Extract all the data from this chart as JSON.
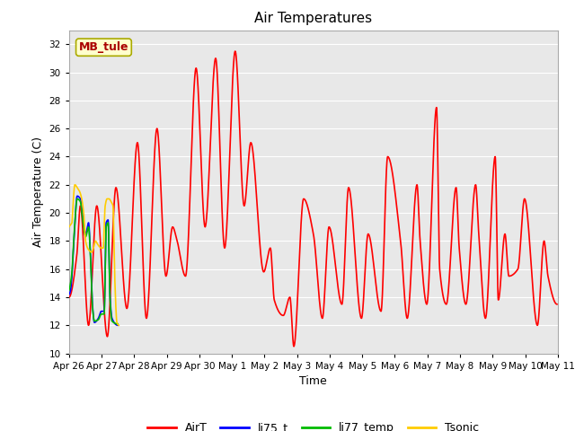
{
  "title": "Air Temperatures",
  "xlabel": "Time",
  "ylabel": "Air Temperature (C)",
  "ylim": [
    10,
    33
  ],
  "yticks": [
    10,
    12,
    14,
    16,
    18,
    20,
    22,
    24,
    26,
    28,
    30,
    32
  ],
  "legend_labels": [
    "AirT",
    "li75_t",
    "li77_temp",
    "Tsonic"
  ],
  "legend_colors": [
    "#ff0000",
    "#0000ff",
    "#00bb00",
    "#ffcc00"
  ],
  "annotation_text": "MB_tule",
  "annotation_color": "#aa0000",
  "annotation_bg": "#ffffcc",
  "annotation_border": "#aaaa00",
  "line_width": 1.2,
  "tick_dates": [
    "Apr 26",
    "Apr 27",
    "Apr 28",
    "Apr 29",
    "Apr 30",
    "May 1",
    "May 2",
    "May 3",
    "May 4",
    "May 5",
    "May 6",
    "May 7",
    "May 8",
    "May 9",
    "May 10",
    "May 11"
  ],
  "airt_keypoints": [
    [
      0.0,
      14.0
    ],
    [
      0.4,
      17.0
    ],
    [
      0.58,
      20.5
    ],
    [
      1.0,
      12.0
    ],
    [
      1.42,
      20.5
    ],
    [
      1.96,
      11.2
    ],
    [
      2.4,
      21.8
    ],
    [
      2.96,
      13.2
    ],
    [
      3.5,
      25.0
    ],
    [
      3.96,
      12.5
    ],
    [
      4.5,
      26.0
    ],
    [
      4.96,
      15.5
    ],
    [
      5.3,
      19.0
    ],
    [
      5.5,
      18.2
    ],
    [
      5.96,
      15.5
    ],
    [
      6.5,
      30.3
    ],
    [
      6.96,
      19.0
    ],
    [
      7.5,
      31.0
    ],
    [
      7.96,
      17.5
    ],
    [
      8.5,
      31.5
    ],
    [
      8.96,
      20.5
    ],
    [
      9.3,
      25.0
    ],
    [
      9.96,
      15.8
    ],
    [
      10.3,
      17.5
    ],
    [
      10.5,
      13.8
    ],
    [
      10.96,
      12.7
    ],
    [
      11.3,
      14.0
    ],
    [
      11.5,
      10.5
    ],
    [
      12.0,
      21.0
    ],
    [
      12.5,
      18.5
    ],
    [
      12.96,
      12.5
    ],
    [
      13.3,
      19.0
    ],
    [
      13.96,
      13.5
    ],
    [
      14.3,
      21.8
    ],
    [
      14.96,
      12.5
    ],
    [
      15.3,
      18.5
    ],
    [
      15.96,
      13.0
    ],
    [
      16.3,
      24.0
    ],
    [
      16.96,
      18.0
    ],
    [
      17.3,
      12.5
    ],
    [
      17.8,
      22.0
    ],
    [
      17.96,
      18.0
    ],
    [
      18.3,
      13.5
    ],
    [
      18.8,
      27.5
    ],
    [
      18.96,
      16.0
    ],
    [
      19.3,
      13.5
    ],
    [
      19.8,
      21.8
    ],
    [
      19.96,
      17.5
    ],
    [
      20.3,
      13.5
    ],
    [
      20.8,
      22.0
    ],
    [
      20.96,
      18.5
    ],
    [
      21.3,
      12.5
    ],
    [
      21.8,
      24.0
    ],
    [
      21.96,
      13.8
    ],
    [
      22.3,
      18.5
    ],
    [
      22.5,
      15.5
    ],
    [
      22.96,
      16.0
    ],
    [
      23.3,
      21.0
    ],
    [
      23.96,
      12.0
    ],
    [
      24.3,
      18.0
    ],
    [
      24.5,
      15.5
    ],
    [
      24.96,
      13.5
    ]
  ],
  "li75_points": [
    [
      0.0,
      14.2
    ],
    [
      0.08,
      14.5
    ],
    [
      0.15,
      15.5
    ],
    [
      0.25,
      18.0
    ],
    [
      0.42,
      21.2
    ],
    [
      0.58,
      21.0
    ],
    [
      0.7,
      19.8
    ],
    [
      0.85,
      18.5
    ],
    [
      1.0,
      19.3
    ],
    [
      1.1,
      17.0
    ],
    [
      1.2,
      13.5
    ],
    [
      1.3,
      12.2
    ],
    [
      1.5,
      12.5
    ],
    [
      1.65,
      13.0
    ],
    [
      1.8,
      13.0
    ],
    [
      1.9,
      19.3
    ],
    [
      2.0,
      19.5
    ],
    [
      2.1,
      14.0
    ],
    [
      2.2,
      12.5
    ],
    [
      2.5,
      12.0
    ]
  ],
  "li77_points": [
    [
      0.0,
      14.5
    ],
    [
      0.08,
      15.0
    ],
    [
      0.15,
      15.8
    ],
    [
      0.25,
      18.2
    ],
    [
      0.42,
      21.0
    ],
    [
      0.58,
      20.8
    ],
    [
      0.7,
      19.5
    ],
    [
      0.85,
      18.3
    ],
    [
      1.0,
      19.0
    ],
    [
      1.1,
      16.8
    ],
    [
      1.2,
      13.3
    ],
    [
      1.3,
      12.3
    ],
    [
      1.5,
      12.4
    ],
    [
      1.65,
      12.8
    ],
    [
      1.8,
      12.8
    ],
    [
      1.9,
      19.0
    ],
    [
      2.0,
      19.3
    ],
    [
      2.1,
      13.8
    ],
    [
      2.2,
      12.3
    ],
    [
      2.5,
      12.1
    ]
  ],
  "tsonic_points": [
    [
      0.0,
      19.0
    ],
    [
      0.05,
      19.1
    ],
    [
      0.1,
      19.2
    ],
    [
      0.15,
      19.3
    ],
    [
      0.2,
      20.5
    ],
    [
      0.3,
      22.0
    ],
    [
      0.42,
      21.8
    ],
    [
      0.55,
      21.5
    ],
    [
      0.65,
      21.0
    ],
    [
      0.75,
      20.0
    ],
    [
      0.85,
      18.0
    ],
    [
      0.95,
      17.5
    ],
    [
      1.05,
      17.3
    ],
    [
      1.15,
      17.2
    ],
    [
      1.25,
      17.5
    ],
    [
      1.35,
      18.0
    ],
    [
      1.45,
      17.8
    ],
    [
      1.55,
      17.6
    ],
    [
      1.65,
      17.5
    ],
    [
      1.75,
      17.5
    ],
    [
      1.85,
      20.5
    ],
    [
      1.95,
      21.0
    ],
    [
      2.05,
      21.0
    ],
    [
      2.15,
      20.8
    ],
    [
      2.25,
      20.5
    ],
    [
      2.35,
      15.0
    ],
    [
      2.45,
      12.2
    ],
    [
      2.55,
      12.0
    ]
  ]
}
